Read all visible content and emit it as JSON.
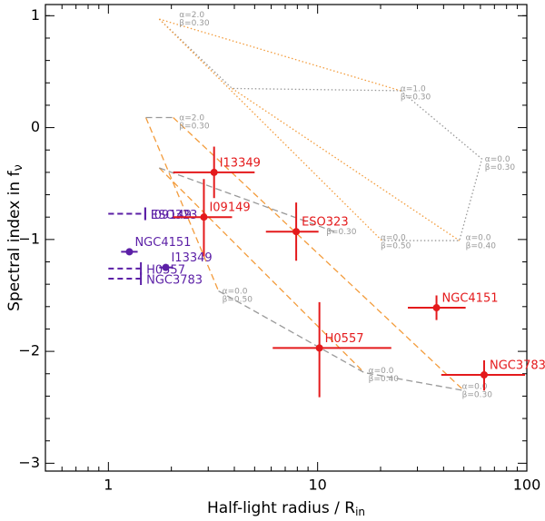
{
  "chart_data": {
    "type": "scatter",
    "xlabel": "Half-light radius / R",
    "xlabel_sub": "in",
    "ylabel": "Spectral index in f",
    "ylabel_sub": "ν",
    "xlog": true,
    "xlim": [
      0.5,
      100
    ],
    "ylim": [
      -3.07,
      1.1
    ],
    "xticks": [
      1,
      10,
      100
    ],
    "xminor": [
      0.6,
      0.7,
      0.8,
      0.9,
      2,
      3,
      4,
      5,
      6,
      7,
      8,
      9,
      20,
      30,
      40,
      50,
      60,
      70,
      80,
      90
    ],
    "yticks": [
      {
        "value": -3,
        "label": "−3"
      },
      {
        "value": -2,
        "label": "−2"
      },
      {
        "value": -1,
        "label": "−1"
      },
      0,
      1
    ],
    "yminor": [
      -2.8,
      -2.6,
      -2.4,
      -2.2,
      -1.8,
      -1.6,
      -1.4,
      -1.2,
      -0.8,
      -0.6,
      -0.4,
      -0.2,
      0.2,
      0.4,
      0.6,
      0.8,
      1.0
    ],
    "series": [
      {
        "color": "#e41a1c",
        "labels": [
          "I13349",
          "I09149",
          "ESO323",
          "NGC4151",
          "H0557",
          "NGC3783"
        ],
        "x": [
          3.2,
          2.86,
          7.9,
          37,
          10.2,
          62.5
        ],
        "y": [
          -0.4,
          -0.8,
          -0.93,
          -1.61,
          -1.97,
          -2.21
        ],
        "x_lo": [
          2.04,
          2.04,
          5.66,
          27,
          6.1,
          39
        ],
        "x_hi": [
          5.0,
          3.9,
          10.1,
          51,
          22.5,
          98
        ],
        "y_lo": [
          -0.63,
          -1.15,
          -1.19,
          -1.72,
          -2.41,
          -2.35
        ],
        "y_hi": [
          -0.17,
          -0.46,
          -0.67,
          -1.5,
          -1.56,
          -2.08
        ]
      },
      {
        "color": "#5b1fa6",
        "labels": [
          "NGC4151",
          "I13349"
        ],
        "x": [
          1.26,
          1.88
        ],
        "y": [
          -1.11,
          -1.25
        ],
        "x_lo": [
          1.15,
          1.75
        ],
        "x_hi": [
          1.38,
          2.04
        ],
        "y_lo": [
          -1.14,
          -1.28
        ],
        "y_hi": [
          -1.08,
          -1.22
        ]
      }
    ],
    "limits": {
      "color": "#5b1fa6",
      "labels": [
        "I09149",
        "ESO323",
        "H0557",
        "NGC3783"
      ],
      "x": [
        1.5,
        1.5,
        1.43,
        1.43
      ],
      "y": [
        -0.77,
        -0.77,
        -1.26,
        -1.35
      ]
    },
    "models": [
      {
        "style": "dotted",
        "color": "#999999",
        "x": [
          1.75,
          3.9,
          24.9,
          61,
          47.6,
          20.3
        ],
        "y": [
          0.97,
          0.35,
          0.33,
          -0.28,
          -1.01,
          -1.01
        ]
      },
      {
        "style": "dotted",
        "color": "#f39c3c",
        "x": [
          1.75,
          24.9
        ],
        "y": [
          0.97,
          0.33
        ]
      },
      {
        "style": "dotted",
        "color": "#f39c3c",
        "x": [
          1.75,
          20.3
        ],
        "y": [
          0.97,
          -1.01
        ]
      },
      {
        "style": "dotted",
        "color": "#f39c3c",
        "x": [
          3.9,
          47.6
        ],
        "y": [
          0.35,
          -1.01
        ]
      },
      {
        "style": "dashed",
        "color": "#f39c3c",
        "x": [
          1.51,
          3.36
        ],
        "y": [
          0.09,
          -1.46
        ]
      },
      {
        "style": "dashed",
        "color": "#f39c3c",
        "x": [
          2.04,
          50
        ],
        "y": [
          0.09,
          -2.35
        ]
      },
      {
        "style": "dashed",
        "color": "#f39c3c",
        "x": [
          1.75,
          16.7
        ],
        "y": [
          -0.36,
          -2.19
        ]
      },
      {
        "style": "dashed",
        "color": "#999999",
        "x": [
          1.51,
          2.04
        ],
        "y": [
          0.09,
          0.09
        ]
      },
      {
        "style": "dashed",
        "color": "#999999",
        "x": [
          1.75,
          12
        ],
        "y": [
          -0.36,
          -0.93
        ]
      },
      {
        "style": "dashed",
        "color": "#999999",
        "x": [
          3.36,
          16.7,
          50
        ],
        "y": [
          -1.46,
          -2.19,
          -2.35
        ]
      }
    ],
    "model_labels": [
      {
        "lines": [
          "α=2.0",
          "β=0.30"
        ],
        "x": 2.18,
        "y": 1.01
      },
      {
        "lines": [
          "α=1.0",
          "β=0.30"
        ],
        "x": 24.9,
        "y": 0.35
      },
      {
        "lines": [
          "α=0.0",
          "β=0.30"
        ],
        "x": 63,
        "y": -0.28
      },
      {
        "lines": [
          "α=0.0",
          "β=0.50"
        ],
        "x": 20,
        "y": -0.98
      },
      {
        "lines": [
          "α=0.0",
          "β=0.40"
        ],
        "x": 51,
        "y": -0.98
      },
      {
        "lines": [
          "α=2.0",
          "β=0.30"
        ],
        "x": 2.18,
        "y": 0.09
      },
      {
        "lines": [
          "β=0.30"
        ],
        "x": 11,
        "y": -0.93
      },
      {
        "lines": [
          "α=0.0",
          "β=0.50"
        ],
        "x": 3.5,
        "y": -1.46
      },
      {
        "lines": [
          "α=0.0",
          "β=0.40"
        ],
        "x": 17.5,
        "y": -2.17
      },
      {
        "lines": [
          "α=0.0",
          "β=0.30"
        ],
        "x": 49,
        "y": -2.31
      }
    ]
  }
}
